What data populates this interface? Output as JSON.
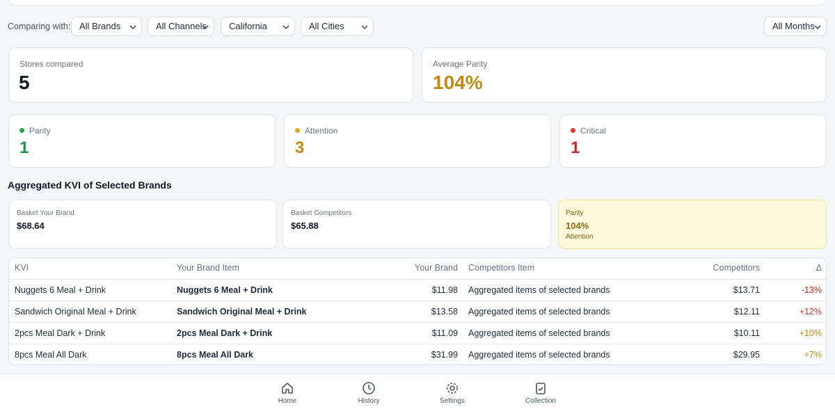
{
  "header": {
    "comparing_label": "Comparing with:"
  },
  "filters": [
    "All Brands",
    "All Channels",
    "California",
    "All Cities"
  ],
  "month_filter": "All Months",
  "summary": [
    {
      "label": "Stores compared",
      "value": "5"
    },
    {
      "label": "Average Parity",
      "value": "104%"
    }
  ],
  "status": [
    {
      "label": "Parity",
      "value": "1"
    },
    {
      "label": "Attention",
      "value": "3"
    },
    {
      "label": "Critical",
      "value": "1"
    }
  ],
  "section_title": "Aggregated KVI of Selected Brands",
  "baskets": [
    {
      "label": "Basket Your Brand",
      "value": "$68.64"
    },
    {
      "label": "Basket Competitors",
      "value": "$65.88"
    },
    {
      "label": "Parity",
      "value": "104%",
      "note": "Attention"
    }
  ],
  "table": {
    "columns": [
      "KVI",
      "Your Brand Item",
      "Your Brand",
      "Competitors Item",
      "Competitors",
      "Δ"
    ],
    "rows": [
      [
        "Nuggets 6 Meal + Drink",
        "Nuggets 6 Meal + Drink",
        "$11.98",
        "Aggregated items of selected brands",
        "$13.71",
        "-13%"
      ],
      [
        "Sandwich Original Meal + Drink",
        "Sandwich Original Meal + Drink",
        "$13.58",
        "Aggregated items of selected brands",
        "$12.11",
        "+12%"
      ],
      [
        "2pcs Meal Dark + Drink",
        "2pcs Meal Dark + Drink",
        "$11.09",
        "Aggregated items of selected brands",
        "$10.11",
        "+10%"
      ],
      [
        "8pcs Meal All Dark",
        "8pcs Meal All Dark",
        "$31.99",
        "Aggregated items of selected brands",
        "$29.95",
        "+7%"
      ]
    ]
  },
  "nav": [
    "Home",
    "History",
    "Settings",
    "Collection"
  ]
}
